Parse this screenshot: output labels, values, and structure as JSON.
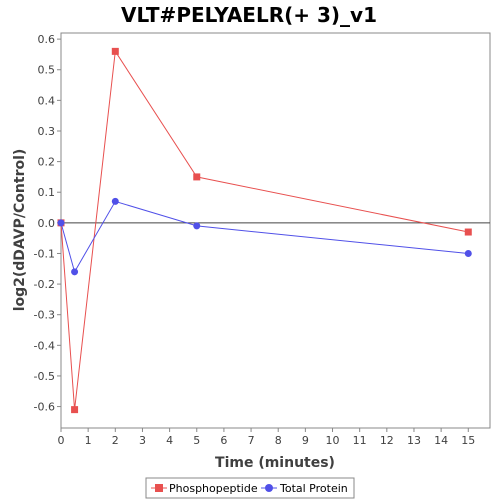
{
  "chart_data": {
    "type": "line",
    "title": "VLT#PELYAELR(+ 3)_v1",
    "xlabel": "Time (minutes)",
    "ylabel": "log2(dDAVP/Control)",
    "xlim": [
      0,
      15.8
    ],
    "ylim": [
      -0.67,
      0.62
    ],
    "x_ticks": [
      0,
      1,
      2,
      3,
      4,
      5,
      6,
      7,
      8,
      9,
      10,
      11,
      12,
      13,
      14,
      15
    ],
    "y_ticks": [
      -0.6,
      -0.5,
      -0.4,
      -0.3,
      -0.2,
      -0.1,
      0.0,
      0.1,
      0.2,
      0.3,
      0.4,
      0.5,
      0.6
    ],
    "y_tick_labels": [
      "-0.6",
      "-0.5",
      "-0.4",
      "-0.3",
      "-0.2",
      "-0.1",
      "0.0",
      "0.1",
      "0.2",
      "0.3",
      "0.4",
      "0.5",
      "0.6"
    ],
    "grid": false,
    "zero_line": true,
    "legend_position": "bottom",
    "series": [
      {
        "name": "Phosphopeptide",
        "marker": "square",
        "color": "#e8504f",
        "x": [
          0,
          0.5,
          2,
          5,
          15
        ],
        "y": [
          0.0,
          -0.61,
          0.56,
          0.15,
          -0.03
        ]
      },
      {
        "name": "Total Protein",
        "marker": "circle",
        "color": "#5050e8",
        "x": [
          0,
          0.5,
          2,
          5,
          15
        ],
        "y": [
          0.0,
          -0.16,
          0.07,
          -0.01,
          -0.1
        ]
      }
    ]
  }
}
